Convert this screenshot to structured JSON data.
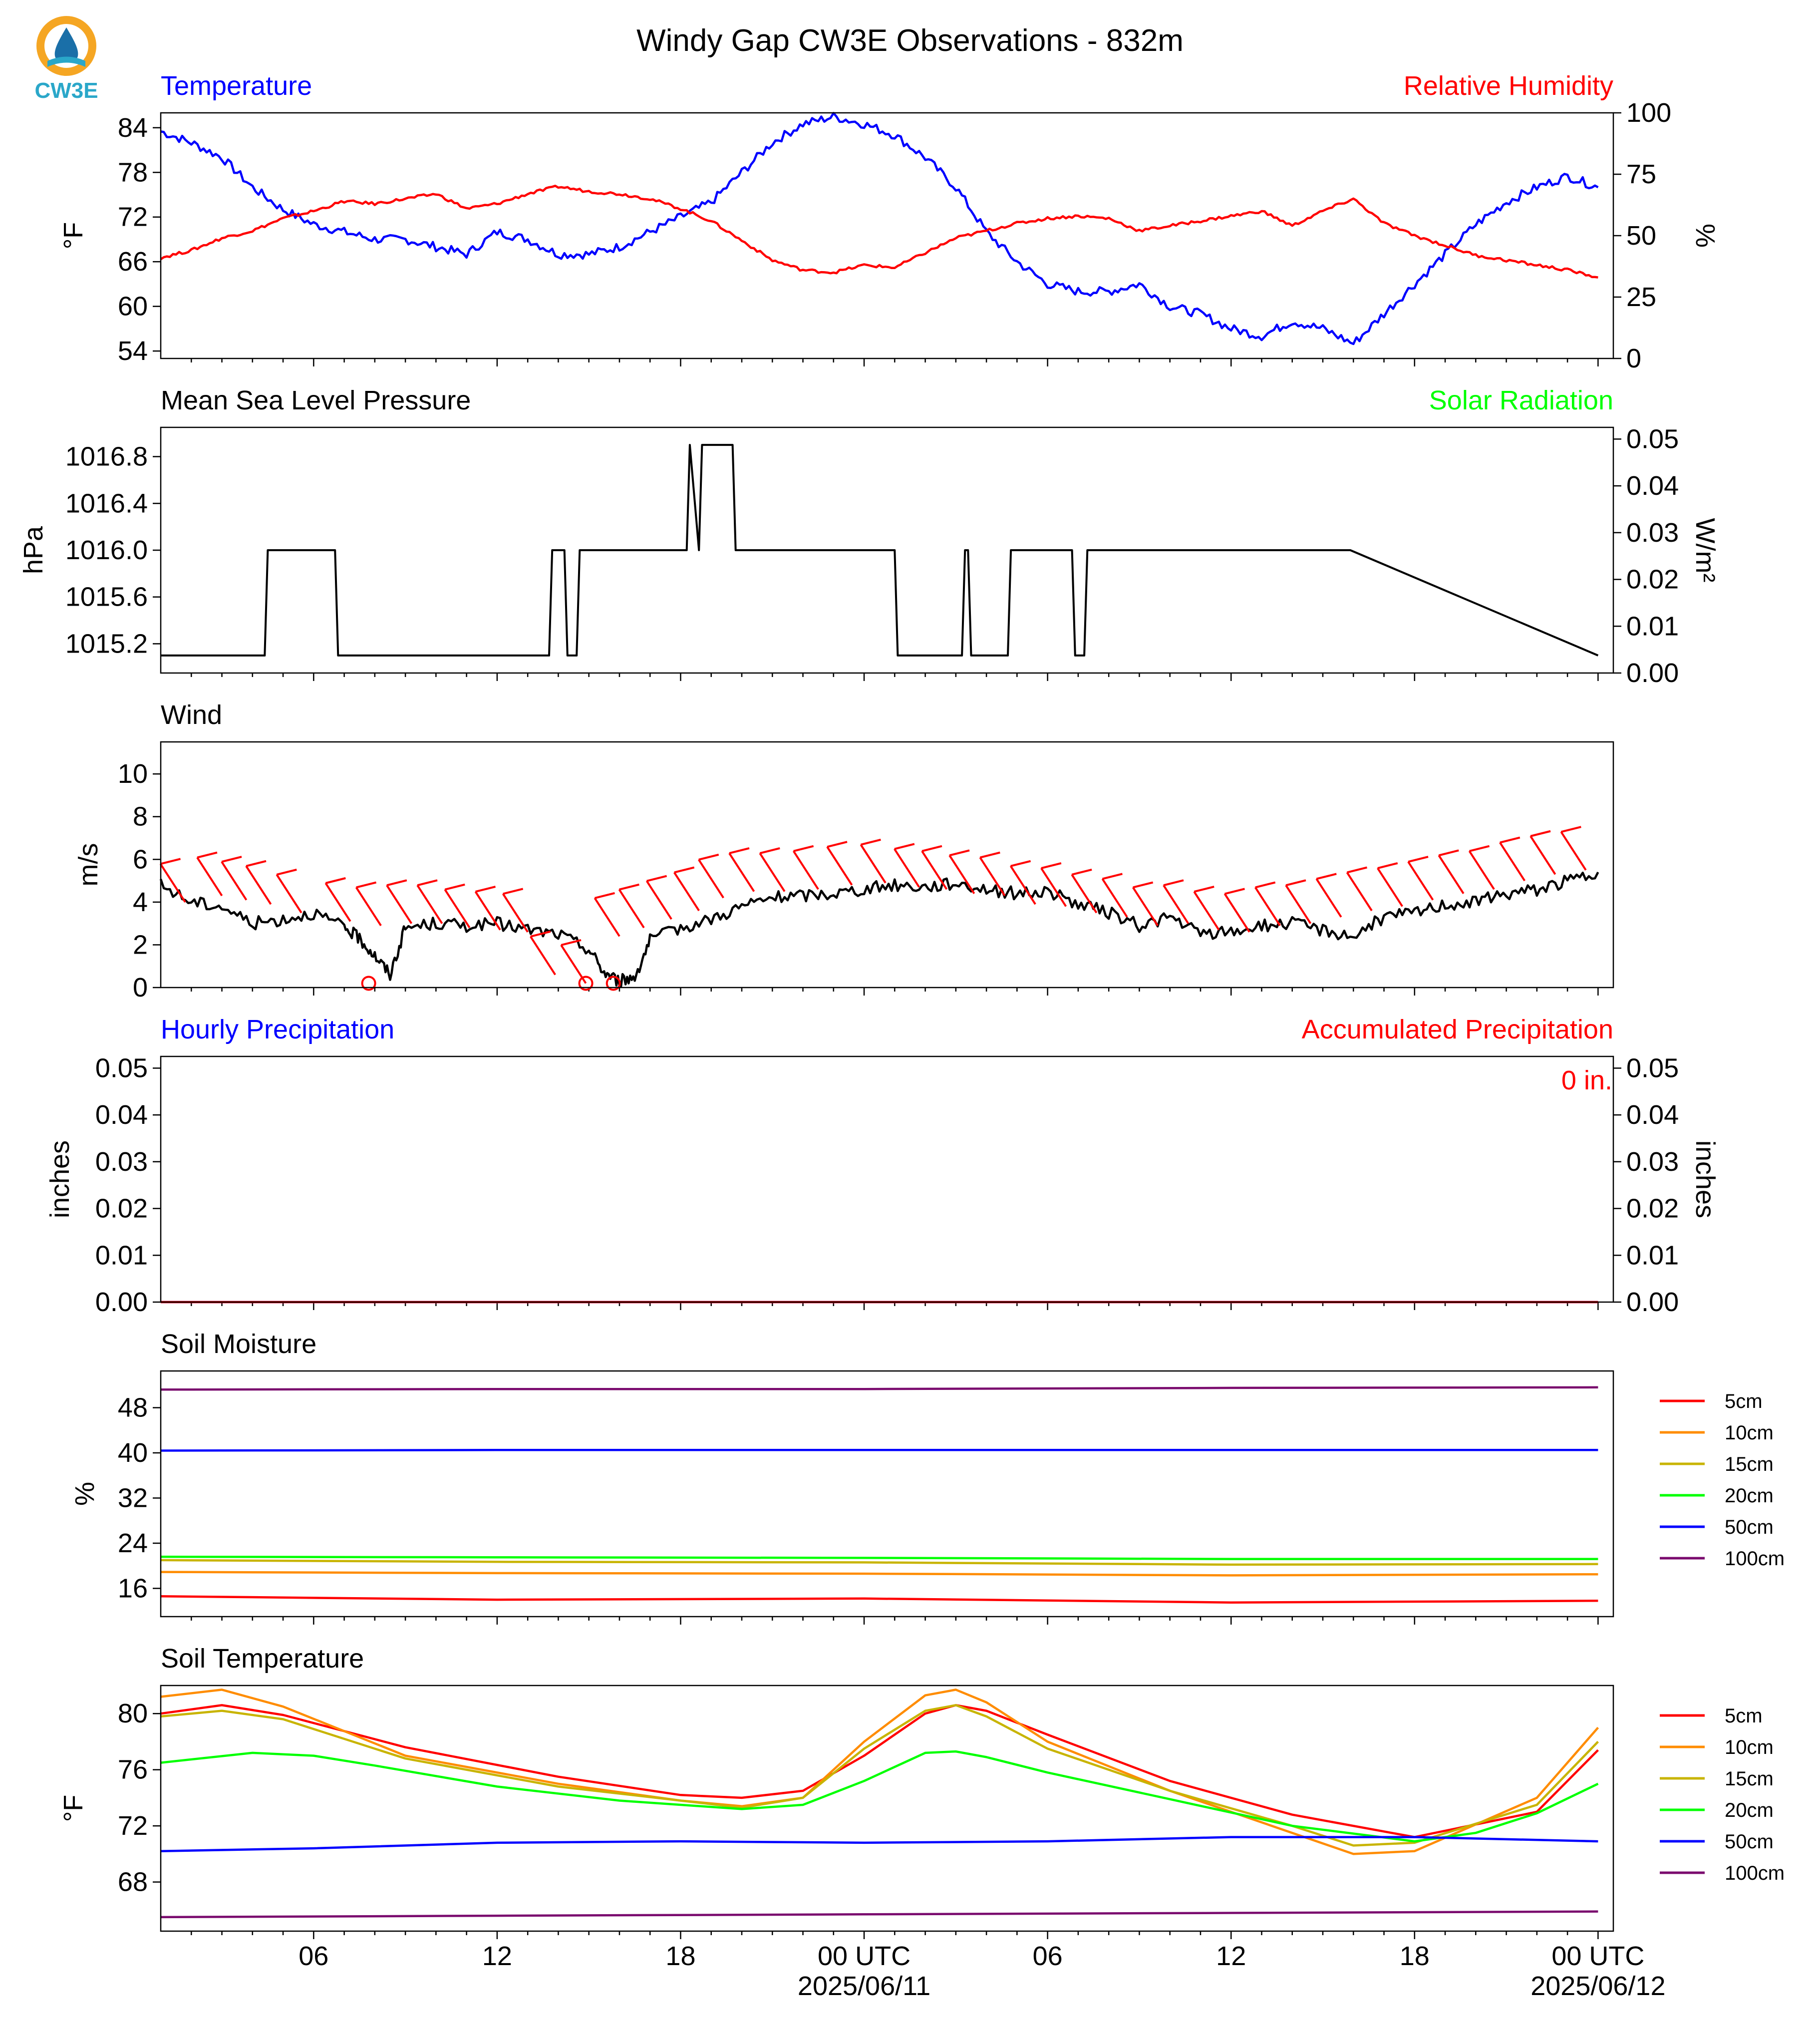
{
  "title": "Windy Gap CW3E Observations - 832m",
  "logo": {
    "text": "CW3E",
    "colors": {
      "ring": "#f5a623",
      "drop": "#1a6fa8",
      "wave": "#2aa7c9"
    }
  },
  "colors": {
    "blue": "#0000ff",
    "red": "#ff0000",
    "green": "#00ff00",
    "black": "#000000",
    "orange": "#ff8c00",
    "olive": "#c8b400",
    "purple": "#7a0a6e"
  },
  "time_axis": {
    "tick_labels": [
      "06",
      "12",
      "18",
      "00 UTC",
      "06",
      "12",
      "18",
      "00 UTC"
    ],
    "date_labels": [
      "2025/06/11",
      "2025/06/12"
    ]
  },
  "chart_data": [
    {
      "type": "line",
      "id": "temp_rh",
      "left_title": "Temperature",
      "right_title": "Relative Humidity",
      "ylabel_left": "°F",
      "ylabel_right": "%",
      "ylim_left": [
        53,
        86
      ],
      "ylim_right": [
        0,
        100
      ],
      "yticks_left": [
        54,
        60,
        66,
        72,
        78,
        84
      ],
      "yticks_right": [
        0,
        25,
        50,
        75,
        100
      ],
      "xlim_hours": [
        -23,
        24.5
      ],
      "series": [
        {
          "axis": "left",
          "color": "#0000ff",
          "x": [
            -23,
            -22,
            -21,
            -20,
            -19,
            -18,
            -17,
            -16,
            -15,
            -14,
            -13,
            -12,
            -11,
            -10,
            -9,
            -8,
            -7,
            -6,
            -5,
            -4,
            -3,
            -2,
            -1,
            0,
            1,
            2,
            3,
            4,
            5,
            6,
            7,
            8,
            9,
            10,
            11,
            12,
            13,
            14,
            15,
            16,
            17,
            18,
            19,
            20,
            21,
            22,
            23,
            24
          ],
          "y": [
            83.5,
            82,
            80,
            76,
            73,
            71,
            70,
            69,
            69,
            68,
            67,
            70,
            69,
            67,
            67,
            68,
            70,
            72,
            74,
            78,
            82,
            84.5,
            85.5,
            84.5,
            83,
            80,
            76,
            70,
            66,
            63,
            62,
            62,
            63,
            60,
            59,
            57,
            56,
            58,
            57,
            55,
            59,
            63,
            67,
            71,
            74,
            76,
            77.5,
            76
          ]
        },
        {
          "axis": "right",
          "color": "#ff0000",
          "x": [
            -23,
            -22,
            -21,
            -20,
            -19,
            -18,
            -17,
            -16,
            -15,
            -14,
            -13,
            -12,
            -11,
            -10,
            -9,
            -8,
            -7,
            -6,
            -5,
            -4,
            -3,
            -2,
            -1,
            0,
            1,
            2,
            3,
            4,
            5,
            6,
            7,
            8,
            9,
            10,
            11,
            12,
            13,
            14,
            15,
            16,
            17,
            18,
            19,
            20,
            21,
            22,
            23,
            24
          ],
          "y": [
            41,
            44,
            49,
            52,
            57,
            60,
            64,
            63,
            65,
            67,
            61,
            63,
            67,
            70,
            68,
            67,
            65,
            61,
            56,
            48,
            40,
            36,
            35,
            38,
            37,
            43,
            49,
            52,
            55,
            57,
            58,
            57,
            52,
            54,
            56,
            58,
            60,
            54,
            60,
            65,
            55,
            50,
            46,
            42,
            40,
            38,
            36,
            33
          ]
        }
      ]
    },
    {
      "type": "line",
      "id": "pressure_solar",
      "left_title": "Mean Sea Level Pressure",
      "right_title": "Solar Radiation",
      "ylabel_left": "hPa",
      "ylabel_right": "W/m²",
      "ylim_left": [
        1014.95,
        1017.05
      ],
      "ylim_right": [
        0,
        0.0525
      ],
      "yticks_left": [
        1015.2,
        1015.6,
        1016.0,
        1016.4,
        1016.8
      ],
      "yticks_right": [
        0.0,
        0.01,
        0.02,
        0.03,
        0.04,
        0.05
      ],
      "xlim_hours": [
        -23,
        24.5
      ],
      "series": [
        {
          "axis": "left",
          "color": "#000000",
          "x": [
            -23,
            -19.6,
            -19.5,
            -17.3,
            -17.2,
            -10.3,
            -10.2,
            -9.8,
            -9.7,
            -9.4,
            -9.3,
            -8.7,
            -8.6,
            -5.8,
            -5.7,
            -5.4,
            -5.3,
            -4.3,
            -4.2,
            1,
            1.1,
            3.2,
            3.3,
            3.4,
            3.5,
            4.7,
            4.8,
            5.3,
            5.4,
            6.8,
            6.9,
            7.2,
            7.3,
            15.8,
            15.9,
            24.0
          ],
          "y": [
            1015.1,
            1015.1,
            1016.0,
            1016.0,
            1015.1,
            1015.1,
            1016.0,
            1016.0,
            1015.1,
            1015.1,
            1016.0,
            1016.0,
            1016.0,
            1016.0,
            1016.9,
            1016.0,
            1016.9,
            1016.9,
            1016.0,
            1016.0,
            1015.1,
            1015.1,
            1016.0,
            1016.0,
            1015.1,
            1015.1,
            1016.0,
            1016.0,
            1016.0,
            1016.0,
            1015.1,
            1015.1,
            1016.0,
            1016.0,
            1016.0,
            1015.1
          ]
        }
      ]
    },
    {
      "type": "line",
      "id": "wind",
      "left_title": "Wind",
      "ylabel_left": "m/s",
      "ylim_left": [
        0,
        11.5
      ],
      "yticks_left": [
        0,
        2,
        4,
        6,
        8,
        10
      ],
      "xlim_hours": [
        -23,
        24.5
      ],
      "series": [
        {
          "axis": "left",
          "color": "#000000",
          "x": [
            -23,
            -22,
            -21,
            -20,
            -19,
            -18,
            -17,
            -16.5,
            -16,
            -15.5,
            -15,
            -14,
            -13,
            -12,
            -11,
            -10,
            -9,
            -8.5,
            -8,
            -7.5,
            -7,
            -6,
            -5,
            -4,
            -3,
            -2,
            -1,
            0,
            1,
            2,
            3,
            4,
            5,
            6,
            7,
            8,
            9,
            10,
            11,
            12,
            13,
            14,
            15,
            16,
            17,
            18,
            19,
            20,
            21,
            22,
            23,
            24
          ],
          "y": [
            4.8,
            4.0,
            3.8,
            3.0,
            3.2,
            3.5,
            2.8,
            2.3,
            1.5,
            0.6,
            2.8,
            3.0,
            2.9,
            3.0,
            2.7,
            2.5,
            1.8,
            0.7,
            0.3,
            0.5,
            2.2,
            2.8,
            3.2,
            3.8,
            4.2,
            4.3,
            4.4,
            4.6,
            4.8,
            4.7,
            4.9,
            4.6,
            4.4,
            4.5,
            3.9,
            3.5,
            2.9,
            3.3,
            2.5,
            2.6,
            2.9,
            3.0,
            2.7,
            2.4,
            3.3,
            3.5,
            3.9,
            4.0,
            4.4,
            4.6,
            5.0,
            5.4
          ]
        }
      ],
      "barbs": {
        "color": "#ff0000",
        "x": [
          -22.2,
          -21,
          -20.2,
          -19.4,
          -18.4,
          -16.8,
          -15.8,
          -14.8,
          -13.8,
          -12.9,
          -11.9,
          -11,
          -10.1,
          -9.1,
          -8,
          -7.2,
          -6.3,
          -5.4,
          -4.6,
          -3.6,
          -2.6,
          -1.5,
          -0.4,
          0.7,
          1.8,
          2.7,
          3.6,
          4.6,
          5.6,
          6.6,
          7.6,
          8.6,
          9.6,
          10.6,
          11.6,
          12.6,
          13.6,
          14.6,
          15.6,
          16.6,
          17.6,
          18.6,
          19.6,
          20.6,
          21.6,
          22.6,
          23.6
        ],
        "speed": [
          4.0,
          4.3,
          4.1,
          3.9,
          3.5,
          3.1,
          2.9,
          3.0,
          3.0,
          2.8,
          2.7,
          2.6,
          0.6,
          0.2,
          2.4,
          2.8,
          3.2,
          3.6,
          4.2,
          4.5,
          4.5,
          4.6,
          4.8,
          4.9,
          4.7,
          4.6,
          4.4,
          4.3,
          3.9,
          3.8,
          3.5,
          3.3,
          2.9,
          3.0,
          2.7,
          2.6,
          2.9,
          3.0,
          3.3,
          3.6,
          3.8,
          4.1,
          4.4,
          4.6,
          5.0,
          5.3,
          5.5
        ],
        "calm_x": [
          -16.2,
          -9.1,
          -8.2
        ]
      }
    },
    {
      "type": "line",
      "id": "precip",
      "left_title": "Hourly Precipitation",
      "right_title": "Accumulated Precipitation",
      "ylabel_left": "inches",
      "ylabel_right": "inches",
      "ylim_left": [
        0,
        0.0525
      ],
      "ylim_right": [
        0,
        0.0525
      ],
      "yticks_left": [
        0.0,
        0.01,
        0.02,
        0.03,
        0.04,
        0.05
      ],
      "yticks_right": [
        0.0,
        0.01,
        0.02,
        0.03,
        0.04,
        0.05
      ],
      "annotation": "0 in.",
      "xlim_hours": [
        -23,
        24.5
      ],
      "series": [
        {
          "axis": "left",
          "color": "#0000ff",
          "x": [
            -23,
            24
          ],
          "y": [
            0,
            0
          ]
        },
        {
          "axis": "right",
          "color": "#ff0000",
          "x": [
            -23,
            24
          ],
          "y": [
            0,
            0
          ]
        }
      ]
    },
    {
      "type": "line",
      "id": "soil_moisture",
      "left_title": "Soil Moisture",
      "ylabel_left": "%",
      "ylim_left": [
        11,
        54.5
      ],
      "yticks_left": [
        16,
        24,
        32,
        40,
        48
      ],
      "xlim_hours": [
        -23,
        24.5
      ],
      "legend": [
        "5cm",
        "10cm",
        "15cm",
        "20cm",
        "50cm",
        "100cm"
      ],
      "series": [
        {
          "name": "5cm",
          "color": "#ff0000",
          "x": [
            -23,
            -12,
            0,
            12,
            24
          ],
          "y": [
            14.6,
            14.0,
            14.2,
            13.5,
            13.8
          ]
        },
        {
          "name": "10cm",
          "color": "#ff8c00",
          "x": [
            -23,
            -12,
            0,
            12,
            24
          ],
          "y": [
            18.9,
            18.7,
            18.6,
            18.3,
            18.5
          ]
        },
        {
          "name": "15cm",
          "color": "#c8b400",
          "x": [
            -23,
            -12,
            0,
            12,
            24
          ],
          "y": [
            21.0,
            20.7,
            20.6,
            20.2,
            20.3
          ]
        },
        {
          "name": "20cm",
          "color": "#00ff00",
          "x": [
            -23,
            -12,
            0,
            12,
            24
          ],
          "y": [
            21.6,
            21.5,
            21.4,
            21.2,
            21.2
          ]
        },
        {
          "name": "50cm",
          "color": "#0000ff",
          "x": [
            -23,
            -12,
            0,
            12,
            24
          ],
          "y": [
            40.4,
            40.5,
            40.5,
            40.5,
            40.5
          ]
        },
        {
          "name": "100cm",
          "color": "#7a0a6e",
          "x": [
            -23,
            -12,
            0,
            12,
            24
          ],
          "y": [
            51.2,
            51.3,
            51.3,
            51.5,
            51.6
          ]
        }
      ]
    },
    {
      "type": "line",
      "id": "soil_temperature",
      "left_title": "Soil Temperature",
      "ylabel_left": "°F",
      "ylim_left": [
        64.5,
        82
      ],
      "yticks_left": [
        68,
        72,
        76,
        80
      ],
      "xlim_hours": [
        -23,
        24.5
      ],
      "legend": [
        "5cm",
        "10cm",
        "15cm",
        "20cm",
        "50cm",
        "100cm"
      ],
      "series": [
        {
          "name": "5cm",
          "color": "#ff0000",
          "x": [
            -23,
            -21,
            -19,
            -15,
            -10,
            -6,
            -4,
            -2,
            0,
            2,
            3,
            4,
            6,
            10,
            14,
            18,
            22,
            24
          ],
          "y": [
            80.0,
            80.6,
            79.9,
            77.6,
            75.5,
            74.2,
            74.0,
            74.5,
            77.0,
            80.0,
            80.6,
            80.2,
            78.5,
            75.2,
            72.8,
            71.2,
            73.0,
            77.4
          ]
        },
        {
          "name": "10cm",
          "color": "#ff8c00",
          "x": [
            -23,
            -21,
            -19,
            -15,
            -10,
            -6,
            -4,
            -2,
            0,
            2,
            3,
            4,
            6,
            10,
            14,
            16,
            18,
            22,
            24
          ],
          "y": [
            81.2,
            81.7,
            80.5,
            77.0,
            75.0,
            73.8,
            73.4,
            74.0,
            78.0,
            81.3,
            81.7,
            80.8,
            78.0,
            74.5,
            71.5,
            70.0,
            70.2,
            74.0,
            79.0
          ]
        },
        {
          "name": "15cm",
          "color": "#c8b400",
          "x": [
            -23,
            -21,
            -19,
            -15,
            -10,
            -6,
            -4,
            -2,
            0,
            2,
            3,
            4,
            6,
            10,
            14,
            16,
            18,
            22,
            24
          ],
          "y": [
            79.8,
            80.2,
            79.6,
            76.8,
            74.8,
            73.8,
            73.3,
            74.0,
            77.5,
            80.2,
            80.6,
            79.8,
            77.5,
            74.5,
            72.0,
            70.6,
            70.8,
            73.5,
            78.0
          ]
        },
        {
          "name": "20cm",
          "color": "#00ff00",
          "x": [
            -23,
            -20,
            -18,
            -16,
            -12,
            -8,
            -4,
            -2,
            0,
            2,
            3,
            4,
            6,
            10,
            14,
            18,
            20,
            22,
            24
          ],
          "y": [
            76.5,
            77.2,
            77.0,
            76.3,
            74.8,
            73.8,
            73.2,
            73.5,
            75.2,
            77.2,
            77.3,
            76.9,
            75.8,
            73.9,
            72.0,
            70.9,
            71.5,
            72.9,
            75.0
          ]
        },
        {
          "name": "50cm",
          "color": "#0000ff",
          "x": [
            -23,
            -18,
            -12,
            -6,
            0,
            6,
            12,
            18,
            24
          ],
          "y": [
            70.2,
            70.4,
            70.8,
            70.9,
            70.8,
            70.9,
            71.2,
            71.2,
            70.9
          ]
        },
        {
          "name": "100cm",
          "color": "#7a0a6e",
          "x": [
            -23,
            -12,
            0,
            12,
            24
          ],
          "y": [
            65.5,
            65.6,
            65.7,
            65.8,
            65.9
          ]
        }
      ]
    }
  ]
}
